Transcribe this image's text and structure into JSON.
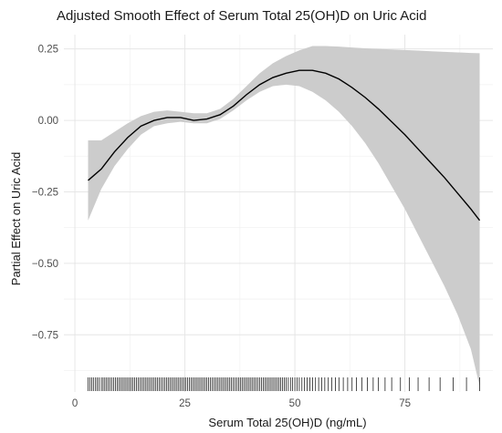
{
  "chart_data": {
    "type": "line",
    "title": "Adjusted Smooth Effect of Serum Total 25(OH)D on Uric Acid",
    "xlabel": "Serum Total 25(OH)D (ng/mL)",
    "ylabel": "Partial Effect on Uric Acid",
    "xlim": [
      -2.5,
      95
    ],
    "ylim": [
      -0.95,
      0.3
    ],
    "x_ticks": [
      0,
      25,
      50,
      75
    ],
    "y_ticks": [
      0.25,
      0.0,
      -0.25,
      -0.5,
      -0.75
    ],
    "y_tick_labels": [
      "0.25",
      "0.00",
      "−0.25",
      "−0.50",
      "−0.75"
    ],
    "grid": true,
    "legend": "none",
    "colors": {
      "line": "#000000",
      "ribbon": "#cccccc",
      "grid": "#e6e6e6",
      "background": "#ffffff"
    },
    "series": [
      {
        "x": [
          3,
          6,
          9,
          12,
          15,
          18,
          21,
          24,
          27,
          30,
          33,
          36,
          39,
          42,
          45,
          48,
          51,
          54,
          57,
          60,
          63,
          66,
          69,
          72,
          75,
          78,
          81,
          84,
          87,
          90,
          92
        ],
        "y": [
          -0.21,
          -0.17,
          -0.11,
          -0.06,
          -0.02,
          0.0,
          0.01,
          0.01,
          0.0,
          0.005,
          0.02,
          0.05,
          0.09,
          0.125,
          0.15,
          0.165,
          0.175,
          0.175,
          0.165,
          0.145,
          0.115,
          0.08,
          0.04,
          -0.005,
          -0.05,
          -0.1,
          -0.15,
          -0.2,
          -0.255,
          -0.31,
          -0.35
        ],
        "lower": [
          -0.35,
          -0.24,
          -0.16,
          -0.1,
          -0.05,
          -0.02,
          -0.01,
          -0.005,
          -0.01,
          -0.01,
          0.005,
          0.035,
          0.07,
          0.1,
          0.12,
          0.125,
          0.12,
          0.1,
          0.07,
          0.03,
          -0.02,
          -0.08,
          -0.15,
          -0.23,
          -0.31,
          -0.4,
          -0.49,
          -0.58,
          -0.68,
          -0.8,
          -0.93
        ],
        "upper": [
          -0.07,
          -0.07,
          -0.04,
          -0.01,
          0.015,
          0.03,
          0.035,
          0.03,
          0.025,
          0.025,
          0.04,
          0.075,
          0.12,
          0.165,
          0.2,
          0.225,
          0.245,
          0.26,
          0.26,
          0.258,
          0.255,
          0.252,
          0.25,
          0.248,
          0.246,
          0.244,
          0.242,
          0.24,
          0.238,
          0.236,
          0.235
        ]
      }
    ],
    "rug": [
      3,
      3.4,
      3.8,
      4.2,
      4.7,
      5.1,
      5.5,
      6,
      6.4,
      6.8,
      7.2,
      7.6,
      8,
      8.4,
      8.8,
      9.2,
      9.6,
      10,
      10.4,
      10.8,
      11.2,
      11.6,
      12,
      12.4,
      12.8,
      13.2,
      13.6,
      14,
      14.4,
      14.8,
      15.2,
      15.6,
      16,
      16.4,
      16.8,
      17.2,
      17.6,
      18,
      18.4,
      18.8,
      19.2,
      19.6,
      20,
      20.4,
      20.8,
      21.2,
      21.6,
      22,
      22.4,
      22.8,
      23.2,
      23.6,
      24,
      24.4,
      24.8,
      25.2,
      25.6,
      26,
      26.4,
      26.8,
      27.2,
      27.6,
      28,
      28.4,
      28.8,
      29.2,
      29.6,
      30,
      30.4,
      30.8,
      31.2,
      31.6,
      32,
      32.4,
      32.8,
      33.2,
      33.6,
      34,
      34.4,
      34.8,
      35.2,
      35.6,
      36,
      36.4,
      36.8,
      37.2,
      37.6,
      38,
      38.4,
      38.8,
      39.2,
      39.6,
      40,
      40.4,
      40.8,
      41.2,
      41.6,
      42,
      42.4,
      42.8,
      43.2,
      43.6,
      44,
      44.4,
      44.8,
      45.2,
      45.6,
      46,
      46.4,
      46.8,
      47.2,
      47.6,
      48,
      48.5,
      49,
      49.5,
      50,
      50.5,
      51,
      51.6,
      52.2,
      52.8,
      53.4,
      54,
      54.7,
      55.4,
      56.1,
      56.8,
      57.6,
      58.4,
      59.2,
      60,
      61,
      62,
      63,
      64,
      65.2,
      66.5,
      67.8,
      69,
      70.5,
      72,
      74,
      76,
      78,
      80.5,
      83,
      86,
      89,
      92
    ]
  }
}
